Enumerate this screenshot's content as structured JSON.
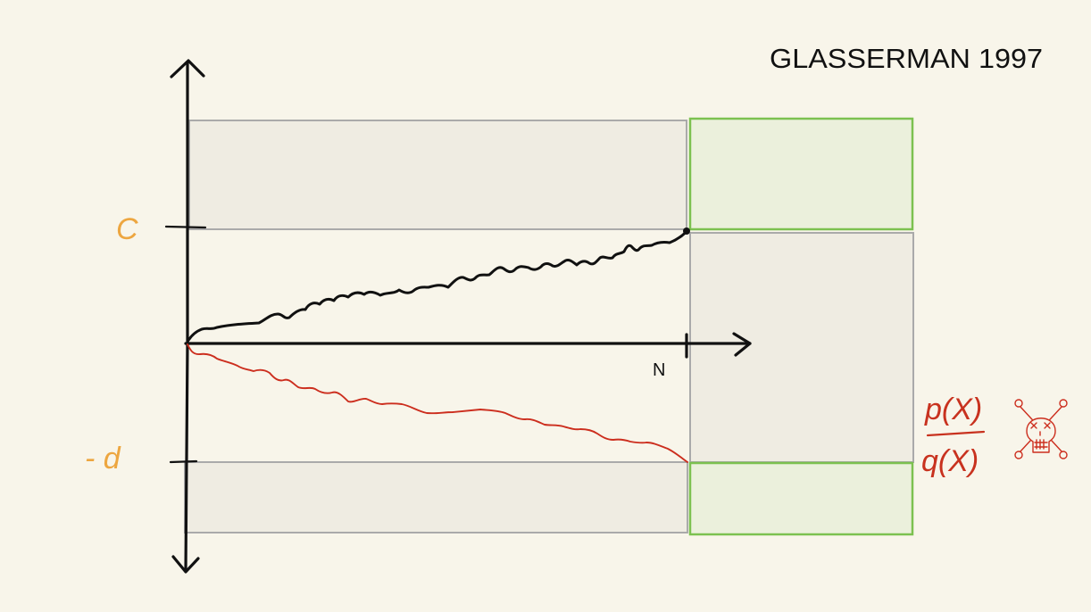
{
  "title": "GLASSERMAN 1997",
  "labels": {
    "upper_barrier": "C",
    "lower_barrier": "- d",
    "horizon": "N",
    "ratio_numerator": "p(X)",
    "ratio_denominator": "q(X)"
  },
  "colors": {
    "background": "#f8f5ea",
    "gray_region_fill": "#efece2",
    "gray_region_stroke": "#aaaaaa",
    "green_region_fill": "#ebf0dc",
    "green_region_stroke": "#7cc150",
    "axis": "#111111",
    "upper_path": "#111111",
    "lower_path": "#cc2e1e",
    "barrier_labels": "#eda640",
    "ratio_text": "#c8321f"
  },
  "icons": [
    "skull-crossbones-icon"
  ]
}
